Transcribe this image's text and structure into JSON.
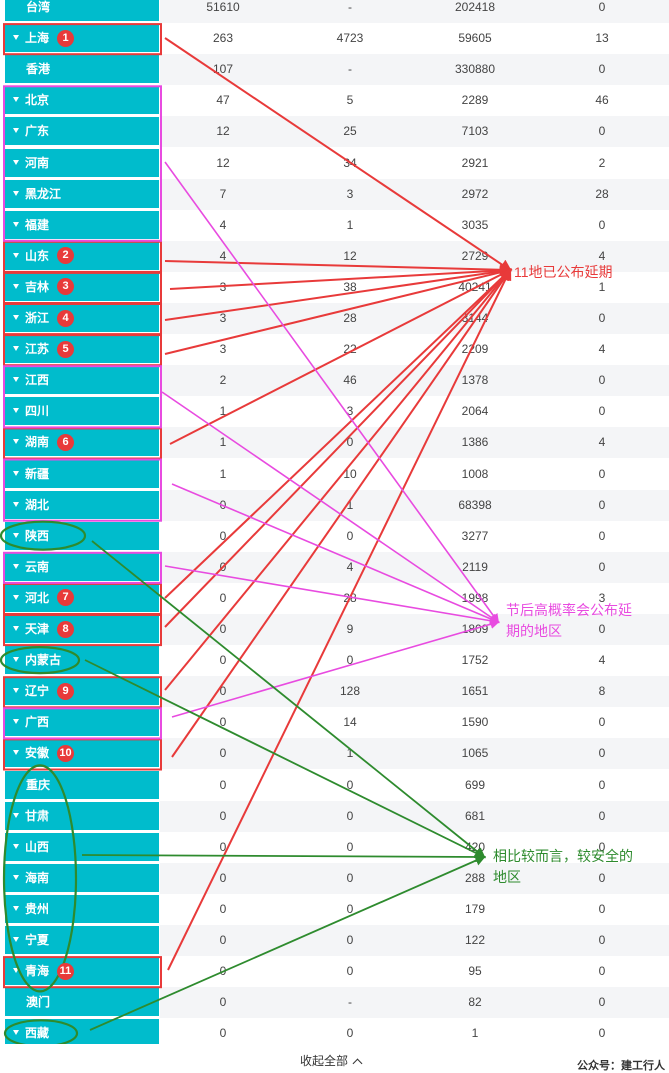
{
  "table": {
    "rows": [
      {
        "name": "台湾",
        "v1": "51610",
        "v2": "-",
        "v3": "202418",
        "v4": "0",
        "expandable": false
      },
      {
        "name": "上海",
        "v1": "263",
        "v2": "4723",
        "v3": "59605",
        "v4": "13",
        "expandable": true
      },
      {
        "name": "香港",
        "v1": "107",
        "v2": "-",
        "v3": "330880",
        "v4": "0",
        "expandable": false
      },
      {
        "name": "北京",
        "v1": "47",
        "v2": "5",
        "v3": "2289",
        "v4": "46",
        "expandable": true
      },
      {
        "name": "广东",
        "v1": "12",
        "v2": "25",
        "v3": "7103",
        "v4": "0",
        "expandable": true
      },
      {
        "name": "河南",
        "v1": "12",
        "v2": "34",
        "v3": "2921",
        "v4": "2",
        "expandable": true
      },
      {
        "name": "黑龙江",
        "v1": "7",
        "v2": "3",
        "v3": "2972",
        "v4": "28",
        "expandable": true
      },
      {
        "name": "福建",
        "v1": "4",
        "v2": "1",
        "v3": "3035",
        "v4": "0",
        "expandable": true
      },
      {
        "name": "山东",
        "v1": "4",
        "v2": "12",
        "v3": "2729",
        "v4": "4",
        "expandable": true
      },
      {
        "name": "吉林",
        "v1": "3",
        "v2": "38",
        "v3": "40241",
        "v4": "1",
        "expandable": true
      },
      {
        "name": "浙江",
        "v1": "3",
        "v2": "28",
        "v3": "3144",
        "v4": "0",
        "expandable": true
      },
      {
        "name": "江苏",
        "v1": "3",
        "v2": "22",
        "v3": "2209",
        "v4": "4",
        "expandable": true
      },
      {
        "name": "江西",
        "v1": "2",
        "v2": "46",
        "v3": "1378",
        "v4": "0",
        "expandable": true
      },
      {
        "name": "四川",
        "v1": "1",
        "v2": "3",
        "v3": "2064",
        "v4": "0",
        "expandable": true
      },
      {
        "name": "湖南",
        "v1": "1",
        "v2": "0",
        "v3": "1386",
        "v4": "4",
        "expandable": true
      },
      {
        "name": "新疆",
        "v1": "1",
        "v2": "10",
        "v3": "1008",
        "v4": "0",
        "expandable": true
      },
      {
        "name": "湖北",
        "v1": "0",
        "v2": "1",
        "v3": "68398",
        "v4": "0",
        "expandable": true
      },
      {
        "name": "陕西",
        "v1": "0",
        "v2": "0",
        "v3": "3277",
        "v4": "0",
        "expandable": true
      },
      {
        "name": "云南",
        "v1": "0",
        "v2": "4",
        "v3": "2119",
        "v4": "0",
        "expandable": true
      },
      {
        "name": "河北",
        "v1": "0",
        "v2": "28",
        "v3": "1998",
        "v4": "3",
        "expandable": true
      },
      {
        "name": "天津",
        "v1": "0",
        "v2": "9",
        "v3": "1809",
        "v4": "0",
        "expandable": true
      },
      {
        "name": "内蒙古",
        "v1": "0",
        "v2": "0",
        "v3": "1752",
        "v4": "4",
        "expandable": true
      },
      {
        "name": "辽宁",
        "v1": "0",
        "v2": "128",
        "v3": "1651",
        "v4": "8",
        "expandable": true
      },
      {
        "name": "广西",
        "v1": "0",
        "v2": "14",
        "v3": "1590",
        "v4": "0",
        "expandable": true
      },
      {
        "name": "安徽",
        "v1": "0",
        "v2": "1",
        "v3": "1065",
        "v4": "0",
        "expandable": true
      },
      {
        "name": "重庆",
        "v1": "0",
        "v2": "0",
        "v3": "699",
        "v4": "0",
        "expandable": false
      },
      {
        "name": "甘肃",
        "v1": "0",
        "v2": "0",
        "v3": "681",
        "v4": "0",
        "expandable": true
      },
      {
        "name": "山西",
        "v1": "0",
        "v2": "0",
        "v3": "420",
        "v4": "0",
        "expandable": true
      },
      {
        "name": "海南",
        "v1": "0",
        "v2": "0",
        "v3": "288",
        "v4": "0",
        "expandable": true
      },
      {
        "name": "贵州",
        "v1": "0",
        "v2": "0",
        "v3": "179",
        "v4": "0",
        "expandable": true
      },
      {
        "name": "宁夏",
        "v1": "0",
        "v2": "0",
        "v3": "122",
        "v4": "0",
        "expandable": true
      },
      {
        "name": "青海",
        "v1": "0",
        "v2": "0",
        "v3": "95",
        "v4": "0",
        "expandable": true
      },
      {
        "name": "澳门",
        "v1": "0",
        "v2": "-",
        "v3": "82",
        "v4": "0",
        "expandable": false
      },
      {
        "name": "西藏",
        "v1": "0",
        "v2": "0",
        "v3": "1",
        "v4": "0",
        "expandable": true
      }
    ]
  },
  "annotations": {
    "postponed": {
      "text": "11地已公布延期",
      "color": "#e83a3a",
      "badges": [
        {
          "n": "1",
          "row": 1
        },
        {
          "n": "2",
          "row": 8
        },
        {
          "n": "3",
          "row": 9
        },
        {
          "n": "4",
          "row": 10
        },
        {
          "n": "5",
          "row": 11
        },
        {
          "n": "6",
          "row": 14
        },
        {
          "n": "7",
          "row": 19
        },
        {
          "n": "8",
          "row": 20
        },
        {
          "n": "9",
          "row": 22
        },
        {
          "n": "10",
          "row": 24
        },
        {
          "n": "11",
          "row": 31
        }
      ]
    },
    "likely": {
      "text_line1": "节后高概率会公布延",
      "text_line2": "期的地区",
      "color": "#e84be0"
    },
    "safer": {
      "text_line1": "相比较而言，较安全的",
      "text_line2": "地区",
      "color": "#2e8b2e"
    }
  },
  "footer": {
    "collapse_label": "收起全部",
    "credit": "公众号：建工行人"
  }
}
